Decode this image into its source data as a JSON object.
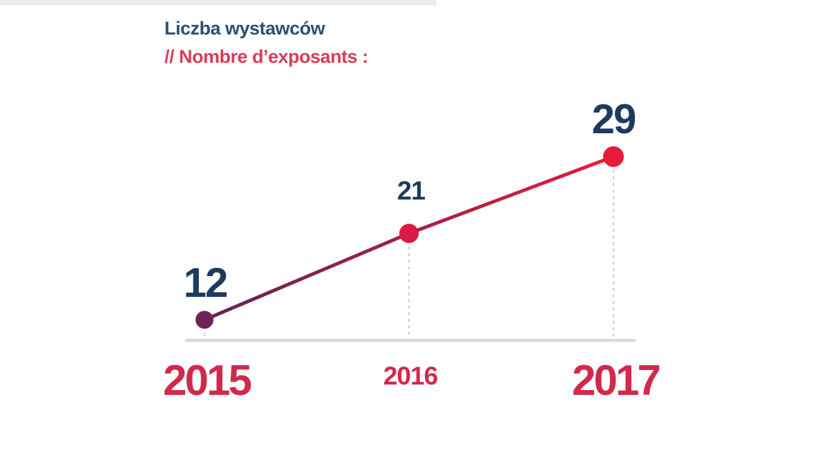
{
  "header": {
    "title": "Liczba wystawców",
    "subtitle": "// Nombre d’exposants :",
    "title_color": "#2b506f",
    "subtitle_color": "#d63d58"
  },
  "chart_data": {
    "type": "line",
    "title": "Liczba wystawców",
    "subtitle": "// Nombre d’exposants :",
    "categories": [
      "2015",
      "2016",
      "2017"
    ],
    "values": [
      12,
      21,
      29
    ],
    "xlabel": "",
    "ylabel": "",
    "grid": false,
    "legend": "none",
    "point_colors": [
      "#6e2456",
      "#d81b44",
      "#e81a3d"
    ],
    "line_gradient": [
      "#5e2751",
      "#e81a3d"
    ],
    "baseline_color": "#d9d9d9",
    "guide_color": "#c8c8c8",
    "value_label_color": "#1d3a5f",
    "year_label_color": "#d2294b"
  }
}
